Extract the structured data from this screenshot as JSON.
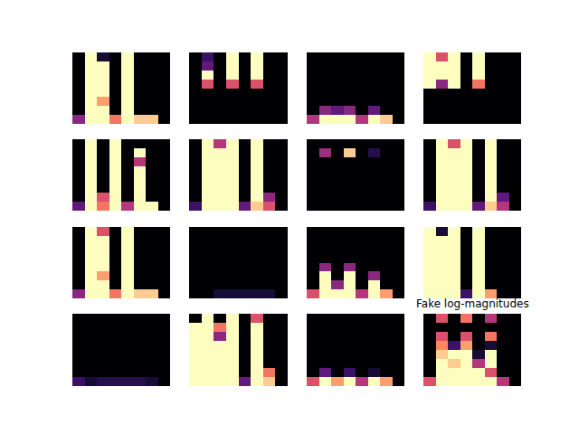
{
  "chart_data": {
    "type": "heatmap",
    "title": "Fake log-magnitudes",
    "color": "magma",
    "zlim": [
      0,
      1
    ],
    "tick_labels": false,
    "panels": [
      {
        "cells": [
          [
            0.4,
            1,
            1,
            0.7,
            1,
            0.9,
            0.9,
            0
          ],
          [
            0,
            1,
            1,
            0,
            1,
            0,
            0,
            0
          ],
          [
            0,
            1,
            0.8,
            0,
            1,
            0,
            0,
            0
          ],
          [
            0,
            1,
            1,
            0,
            1,
            0,
            0,
            0
          ],
          [
            0,
            1,
            1,
            0,
            1,
            0,
            0,
            0
          ],
          [
            0,
            1,
            1,
            0,
            1,
            0,
            0,
            0
          ],
          [
            0,
            1,
            1,
            0,
            1,
            0,
            0,
            0
          ],
          [
            0,
            1,
            0.1,
            0,
            1,
            0,
            0,
            0
          ]
        ]
      },
      {
        "cells": [
          [
            0,
            0,
            0,
            0,
            0,
            0,
            0,
            0
          ],
          [
            0,
            0,
            0,
            0,
            0,
            0,
            0,
            0
          ],
          [
            0,
            0,
            0,
            0,
            0,
            0,
            0,
            0
          ],
          [
            0,
            0,
            0,
            0,
            0,
            0,
            0,
            0
          ],
          [
            0,
            0.6,
            0,
            0.6,
            0,
            0.6,
            0,
            0
          ],
          [
            0,
            1,
            0,
            1,
            0,
            1,
            0,
            0
          ],
          [
            0,
            0.3,
            0,
            1,
            0,
            1,
            0,
            0
          ],
          [
            0,
            0.2,
            0,
            1,
            0,
            1,
            0,
            0
          ]
        ]
      },
      {
        "cells": [
          [
            0.5,
            1,
            1,
            1,
            0.5,
            1,
            0.9,
            0
          ],
          [
            0,
            0.4,
            0.3,
            0.4,
            0,
            0.3,
            0,
            0
          ],
          [
            0,
            0,
            0,
            0,
            0,
            0,
            0,
            0
          ],
          [
            0,
            0,
            0,
            0,
            0,
            0,
            0,
            0
          ],
          [
            0,
            0,
            0,
            0,
            0,
            0,
            0,
            0
          ],
          [
            0,
            0,
            0,
            0,
            0,
            0,
            0,
            0
          ],
          [
            0,
            0,
            0,
            0,
            0,
            0,
            0,
            0
          ],
          [
            0,
            0,
            0,
            0,
            0,
            0,
            0,
            0
          ]
        ]
      },
      {
        "cells": [
          [
            0,
            0,
            0,
            0,
            0,
            0,
            0,
            0
          ],
          [
            0,
            0,
            0,
            0,
            0,
            0,
            0,
            0
          ],
          [
            0,
            0,
            0,
            0,
            0,
            0,
            0,
            0
          ],
          [
            0,
            0,
            0,
            0,
            0,
            0,
            0,
            0
          ],
          [
            1,
            0.4,
            1,
            0,
            0.7,
            0,
            0,
            0
          ],
          [
            1,
            1,
            1,
            0,
            1,
            0,
            0,
            0
          ],
          [
            1,
            1,
            1,
            0,
            1,
            0,
            0,
            0
          ],
          [
            1,
            0.6,
            1,
            0,
            1,
            0,
            0,
            0
          ]
        ]
      },
      {
        "cells": [
          [
            0.3,
            1,
            0.7,
            1,
            0.5,
            1,
            1,
            0
          ],
          [
            0,
            1,
            0.6,
            1,
            0,
            1,
            0,
            0
          ],
          [
            0,
            1,
            0,
            1,
            0,
            1,
            0,
            0
          ],
          [
            0,
            1,
            0,
            1,
            0,
            1,
            0,
            0
          ],
          [
            0,
            1,
            0,
            1,
            0,
            1,
            0,
            0
          ],
          [
            0,
            1,
            0,
            1,
            0,
            0.5,
            0,
            0
          ],
          [
            0,
            1,
            0,
            1,
            0,
            1,
            0,
            0
          ],
          [
            0,
            1,
            0,
            1,
            0,
            0,
            0,
            0
          ]
        ]
      },
      {
        "cells": [
          [
            0.2,
            1,
            1,
            1,
            0.3,
            0.9,
            0.6,
            0
          ],
          [
            0,
            1,
            1,
            1,
            0,
            1,
            0.4,
            0
          ],
          [
            0,
            1,
            1,
            1,
            0,
            1,
            0,
            0
          ],
          [
            0,
            1,
            1,
            1,
            0,
            1,
            0,
            0
          ],
          [
            0,
            1,
            1,
            1,
            0,
            1,
            0,
            0
          ],
          [
            0,
            1,
            1,
            1,
            0,
            1,
            0,
            0
          ],
          [
            0,
            1,
            1,
            1,
            0,
            1,
            0,
            0
          ],
          [
            0,
            1,
            0.5,
            1,
            0,
            1,
            0,
            0
          ]
        ]
      },
      {
        "cells": [
          [
            0,
            0,
            0,
            0,
            0,
            0,
            0,
            0
          ],
          [
            0,
            0,
            0,
            0,
            0,
            0,
            0,
            0
          ],
          [
            0,
            0,
            0,
            0,
            0,
            0,
            0,
            0
          ],
          [
            0,
            0,
            0,
            0,
            0,
            0,
            0,
            0
          ],
          [
            0,
            0,
            0,
            0,
            0,
            0,
            0,
            0
          ],
          [
            0,
            0,
            0,
            0,
            0,
            0,
            0,
            0
          ],
          [
            0,
            0.45,
            0,
            0.9,
            0,
            0.15,
            0,
            0
          ],
          [
            0,
            0,
            0,
            0,
            0,
            0,
            0,
            0
          ]
        ]
      },
      {
        "cells": [
          [
            0.2,
            1,
            1,
            1,
            0.3,
            0.9,
            0.5,
            0
          ],
          [
            0,
            1,
            1,
            1,
            0,
            1,
            0.3,
            0
          ],
          [
            0,
            1,
            1,
            1,
            0,
            1,
            0,
            0
          ],
          [
            0,
            1,
            1,
            1,
            0,
            1,
            0,
            0
          ],
          [
            0,
            1,
            1,
            1,
            0,
            1,
            0,
            0
          ],
          [
            0,
            1,
            1,
            1,
            0,
            1,
            0,
            0
          ],
          [
            0,
            1,
            1,
            1,
            0,
            1,
            0,
            0
          ],
          [
            0,
            1,
            0.6,
            1,
            0,
            1,
            0,
            0
          ]
        ]
      },
      {
        "cells": [
          [
            0.4,
            1,
            1,
            0.7,
            1,
            0.9,
            0.9,
            0
          ],
          [
            0,
            1,
            1,
            0,
            1,
            0,
            0,
            0
          ],
          [
            0,
            1,
            0.8,
            0,
            1,
            0,
            0,
            0
          ],
          [
            0,
            1,
            1,
            0,
            1,
            0,
            0,
            0
          ],
          [
            0,
            1,
            1,
            0,
            1,
            0,
            0,
            0
          ],
          [
            0,
            1,
            1,
            0,
            1,
            0,
            0,
            0
          ],
          [
            0,
            1,
            1,
            0,
            1,
            0,
            0,
            0
          ],
          [
            0,
            1,
            0.6,
            0,
            1,
            0,
            0,
            0
          ]
        ]
      },
      {
        "cells": [
          [
            0,
            0,
            0.1,
            0.1,
            0.1,
            0.1,
            0.1,
            0
          ],
          [
            0,
            0,
            0,
            0,
            0,
            0,
            0,
            0
          ],
          [
            0,
            0,
            0,
            0,
            0,
            0,
            0,
            0
          ],
          [
            0,
            0,
            0,
            0,
            0,
            0,
            0,
            0
          ],
          [
            0,
            0,
            0,
            0,
            0,
            0,
            0,
            0
          ],
          [
            0,
            0,
            0,
            0,
            0,
            0,
            0,
            0
          ],
          [
            0,
            0,
            0,
            0,
            0,
            0,
            0,
            0
          ],
          [
            0,
            0,
            0,
            0,
            0,
            0,
            0,
            0
          ]
        ]
      },
      {
        "cells": [
          [
            0.6,
            1,
            1,
            1,
            0.5,
            1,
            0.8,
            0
          ],
          [
            0,
            1,
            0.4,
            1,
            0,
            1,
            0,
            0
          ],
          [
            0,
            1,
            0,
            1,
            0,
            0.4,
            0,
            0
          ],
          [
            0,
            0.4,
            0,
            0.4,
            0,
            0,
            0,
            0
          ],
          [
            0,
            0,
            0,
            0,
            0,
            0,
            0,
            0
          ],
          [
            0,
            0,
            0,
            0,
            0,
            0,
            0,
            0
          ],
          [
            0,
            0,
            0,
            0,
            0,
            0,
            0,
            0
          ],
          [
            0,
            0,
            0,
            0,
            0,
            0,
            0,
            0
          ]
        ]
      },
      {
        "cells": [
          [
            1,
            1,
            1,
            0.2,
            1,
            0.8,
            0,
            0
          ],
          [
            1,
            1,
            1,
            0,
            1,
            0,
            0,
            0
          ],
          [
            1,
            1,
            1,
            0,
            1,
            0,
            0,
            0
          ],
          [
            1,
            1,
            1,
            0,
            1,
            0,
            0,
            0
          ],
          [
            1,
            1,
            1,
            0,
            1,
            0,
            0,
            0
          ],
          [
            1,
            1,
            1,
            0,
            1,
            0,
            0,
            0
          ],
          [
            1,
            1,
            1,
            0,
            1,
            0,
            0,
            0
          ],
          [
            1,
            0.1,
            1,
            0,
            1,
            0,
            0,
            0
          ]
        ]
      },
      {
        "cells": [
          [
            0.2,
            0.1,
            0.15,
            0.15,
            0.15,
            0.15,
            0.1,
            0
          ],
          [
            0,
            0,
            0,
            0,
            0,
            0,
            0,
            0
          ],
          [
            0,
            0,
            0,
            0,
            0,
            0,
            0,
            0
          ],
          [
            0,
            0,
            0,
            0,
            0,
            0,
            0,
            0
          ],
          [
            0,
            0,
            0,
            0,
            0,
            0,
            0,
            0
          ],
          [
            0,
            0,
            0,
            0,
            0,
            0,
            0,
            0
          ],
          [
            0,
            0,
            0,
            0,
            0,
            0,
            0,
            0
          ],
          [
            0,
            0,
            0,
            0,
            0,
            0,
            0,
            0
          ]
        ]
      },
      {
        "cells": [
          [
            1,
            1,
            1,
            1,
            0.3,
            1,
            0.9,
            0
          ],
          [
            1,
            1,
            1,
            1,
            0,
            1,
            0.7,
            0
          ],
          [
            1,
            1,
            1,
            1,
            0,
            1,
            0,
            0
          ],
          [
            1,
            1,
            1,
            1,
            0,
            1,
            0,
            0
          ],
          [
            1,
            1,
            1,
            1,
            0,
            1,
            0,
            0
          ],
          [
            1,
            1,
            0.4,
            1,
            0,
            1,
            0,
            0
          ],
          [
            1,
            1,
            0.7,
            1,
            0,
            1,
            0,
            0
          ],
          [
            0,
            1,
            0,
            1,
            0,
            0.6,
            0,
            0
          ]
        ]
      },
      {
        "cells": [
          [
            0.6,
            1,
            0.8,
            1,
            0.5,
            1,
            0.8,
            0
          ],
          [
            0,
            0.3,
            0,
            0.2,
            0,
            0.1,
            0,
            0
          ],
          [
            0,
            0,
            0,
            0,
            0,
            0,
            0,
            0
          ],
          [
            0,
            0,
            0,
            0,
            0,
            0,
            0,
            0
          ],
          [
            0,
            0,
            0,
            0,
            0,
            0,
            0,
            0
          ],
          [
            0,
            0,
            0,
            0,
            0,
            0,
            0,
            0
          ],
          [
            0,
            0,
            0,
            0,
            0,
            0,
            0,
            0
          ],
          [
            0,
            0,
            0,
            0,
            0,
            0,
            0,
            0
          ]
        ]
      },
      {
        "cells": [
          [
            0.6,
            1,
            1,
            1,
            1,
            1,
            0.5,
            0
          ],
          [
            0,
            1,
            1,
            1,
            1,
            0.6,
            0,
            0
          ],
          [
            0,
            1,
            0.9,
            1,
            0.5,
            1,
            0,
            0
          ],
          [
            0,
            0.9,
            1,
            1,
            0.1,
            1,
            0,
            0
          ],
          [
            0,
            0.75,
            0.2,
            0.8,
            0,
            0.1,
            0,
            0
          ],
          [
            0,
            0.6,
            0,
            0.6,
            0,
            0.7,
            0,
            0
          ],
          [
            0,
            0,
            0,
            0,
            0,
            0,
            0,
            0
          ],
          [
            0,
            0.6,
            0,
            0.7,
            0,
            0.5,
            0,
            0
          ]
        ]
      }
    ]
  }
}
